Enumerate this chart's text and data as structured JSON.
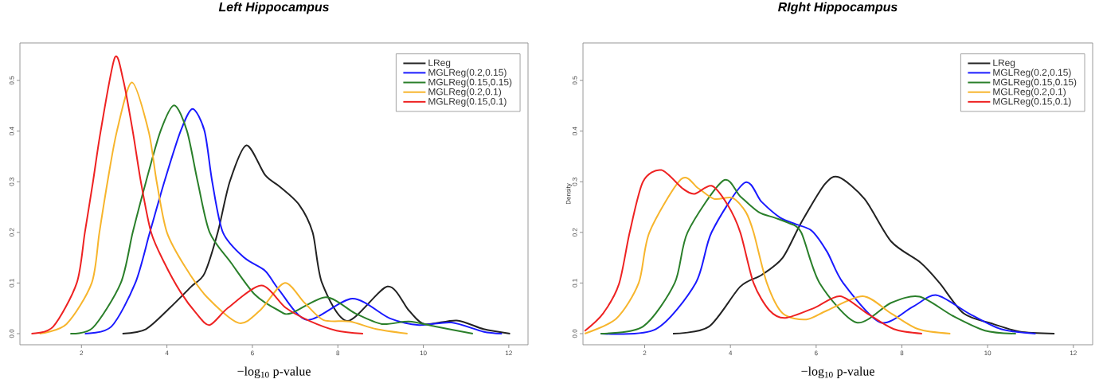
{
  "chart_data": [
    {
      "type": "line",
      "title": "Left Hippocampus",
      "xlabel": "−log$_{10}$ p-value",
      "xlim": [
        0.56,
        12.45
      ],
      "ylim": [
        -0.022,
        0.574
      ],
      "xticks": [
        2,
        4,
        6,
        8,
        10,
        12
      ],
      "yticks": [
        {
          "value": 0,
          "label": "0.0"
        },
        {
          "value": 0.1,
          "label": "0.1"
        },
        {
          "value": 0.2,
          "label": "0.2"
        },
        {
          "value": 0.3,
          "label": "0.3"
        },
        {
          "value": 0.4,
          "label": "0.4"
        },
        {
          "value": 0.5,
          "label": "0.5"
        }
      ],
      "legend": "top right",
      "series": [
        {
          "name": "LReg",
          "color": "#222222",
          "x": [
            2.96,
            3.51,
            4.07,
            4.57,
            4.88,
            5.19,
            5.47,
            5.86,
            6.3,
            6.63,
            7.09,
            7.41,
            7.63,
            8.22,
            9.16,
            9.66,
            10.03,
            10.78,
            11.41,
            12.03
          ],
          "values": [
            0,
            0.009,
            0.051,
            0.093,
            0.119,
            0.2,
            0.3,
            0.372,
            0.313,
            0.291,
            0.255,
            0.2,
            0.1,
            0.025,
            0.093,
            0.046,
            0.019,
            0.026,
            0.009,
            0
          ]
        },
        {
          "name": "MGLReg(0.2,0.15)",
          "color": "#1a1aff",
          "x": [
            2.08,
            2.7,
            3.26,
            3.6,
            3.94,
            4.32,
            4.6,
            4.88,
            5.06,
            5.31,
            5.81,
            6.3,
            6.61,
            7.28,
            8.34,
            9.22,
            9.9,
            10.66,
            11.4,
            11.84
          ],
          "values": [
            0,
            0.014,
            0.1,
            0.2,
            0.3,
            0.4,
            0.444,
            0.4,
            0.3,
            0.2,
            0.15,
            0.124,
            0.088,
            0.027,
            0.069,
            0.03,
            0.017,
            0.022,
            0.004,
            0
          ]
        },
        {
          "name": "MGLReg(0.15,0.15)",
          "color": "#2a7f2a",
          "x": [
            1.74,
            2.27,
            2.92,
            3.2,
            3.51,
            3.85,
            4.17,
            4.47,
            4.72,
            5.0,
            5.5,
            6.06,
            6.61,
            6.9,
            7.72,
            8.41,
            9.03,
            9.66,
            10.28,
            11.16
          ],
          "values": [
            0,
            0.012,
            0.1,
            0.2,
            0.3,
            0.4,
            0.451,
            0.4,
            0.3,
            0.2,
            0.14,
            0.077,
            0.046,
            0.04,
            0.072,
            0.04,
            0.019,
            0.024,
            0.014,
            0
          ]
        },
        {
          "name": "MGLReg(0.2,0.1)",
          "color": "#f7b52c",
          "x": [
            1.02,
            1.65,
            2.24,
            2.42,
            2.61,
            2.83,
            3.18,
            3.57,
            3.76,
            4.0,
            4.44,
            4.94,
            5.68,
            6.18,
            6.75,
            7.22,
            7.66,
            8.28,
            8.9,
            9.63
          ],
          "values": [
            0,
            0.019,
            0.1,
            0.2,
            0.3,
            0.4,
            0.496,
            0.4,
            0.3,
            0.2,
            0.13,
            0.072,
            0.021,
            0.046,
            0.1,
            0.061,
            0.027,
            0.024,
            0.009,
            0
          ]
        },
        {
          "name": "MGLReg(0.15,0.1)",
          "color": "#ee2222",
          "x": [
            0.83,
            1.34,
            1.89,
            2.08,
            2.27,
            2.45,
            2.78,
            2.98,
            3.2,
            3.39,
            3.63,
            3.94,
            4.32,
            4.69,
            5.0,
            5.43,
            6.21,
            6.78,
            7.34,
            7.97,
            8.59
          ],
          "values": [
            0,
            0.014,
            0.1,
            0.2,
            0.3,
            0.4,
            0.545,
            0.5,
            0.4,
            0.3,
            0.2,
            0.14,
            0.082,
            0.04,
            0.017,
            0.051,
            0.095,
            0.051,
            0.025,
            0.006,
            0
          ]
        }
      ]
    },
    {
      "type": "line",
      "title": "RIght Hippocampus",
      "xlabel": "−log$_{10}$ p-value",
      "ylabel": "Density",
      "xlim": [
        0.56,
        12.45
      ],
      "ylim": [
        -0.022,
        0.574
      ],
      "xticks": [
        2,
        4,
        6,
        8,
        10,
        12
      ],
      "yticks": [
        {
          "value": 0,
          "label": "0.0"
        },
        {
          "value": 0.1,
          "label": "0.1"
        },
        {
          "value": 0.2,
          "label": "0.2"
        },
        {
          "value": 0.3,
          "label": "0.3"
        },
        {
          "value": 0.4,
          "label": "0.4"
        },
        {
          "value": 0.5,
          "label": "0.5"
        }
      ],
      "legend": "top right",
      "series": [
        {
          "name": "LReg",
          "color": "#222222",
          "x": [
            2.66,
            3.5,
            4.23,
            4.73,
            5.22,
            5.65,
            6.2,
            6.53,
            7.13,
            7.75,
            8.44,
            8.88,
            9.44,
            10.13,
            10.75,
            11.56
          ],
          "values": [
            0,
            0.014,
            0.093,
            0.116,
            0.15,
            0.219,
            0.295,
            0.309,
            0.266,
            0.182,
            0.14,
            0.1,
            0.04,
            0.019,
            0.004,
            0
          ]
        },
        {
          "name": "MGLReg(0.2,0.15)",
          "color": "#1a1aff",
          "x": [
            0.97,
            2.26,
            3.19,
            3.56,
            4.33,
            4.73,
            5.16,
            5.53,
            5.9,
            6.26,
            6.63,
            7.5,
            8.25,
            8.81,
            9.56,
            10.31,
            11.12
          ],
          "values": [
            0,
            0.009,
            0.1,
            0.2,
            0.298,
            0.26,
            0.229,
            0.216,
            0.203,
            0.161,
            0.1,
            0.022,
            0.053,
            0.076,
            0.04,
            0.009,
            0
          ]
        },
        {
          "name": "MGLReg(0.15,0.15)",
          "color": "#2a7f2a",
          "x": [
            0.97,
            1.96,
            2.7,
            3.0,
            3.83,
            4.23,
            4.66,
            5.03,
            5.34,
            5.65,
            6.08,
            6.94,
            7.75,
            8.41,
            9.19,
            9.94,
            10.66
          ],
          "values": [
            0,
            0.014,
            0.1,
            0.2,
            0.302,
            0.271,
            0.24,
            0.229,
            0.219,
            0.2,
            0.1,
            0.022,
            0.061,
            0.073,
            0.035,
            0.006,
            0
          ]
        },
        {
          "name": "MGLReg(0.2,0.1)",
          "color": "#f7b52c",
          "x": [
            0.6,
            1.34,
            1.86,
            2.11,
            2.85,
            3.25,
            3.62,
            4.05,
            4.36,
            4.54,
            4.85,
            5.22,
            5.77,
            6.26,
            7.09,
            7.75,
            8.38,
            9.13
          ],
          "values": [
            0,
            0.03,
            0.1,
            0.2,
            0.305,
            0.287,
            0.266,
            0.268,
            0.24,
            0.2,
            0.1,
            0.04,
            0.028,
            0.046,
            0.074,
            0.04,
            0.009,
            0
          ]
        },
        {
          "name": "MGLReg(0.15,0.1)",
          "color": "#ee2222",
          "x": [
            0.6,
            1.03,
            1.4,
            1.65,
            1.96,
            2.39,
            2.88,
            3.16,
            3.56,
            3.93,
            4.23,
            4.54,
            4.91,
            5.28,
            5.96,
            6.56,
            7.19,
            7.81,
            8.47
          ],
          "values": [
            0.005,
            0.04,
            0.098,
            0.2,
            0.3,
            0.323,
            0.287,
            0.276,
            0.292,
            0.255,
            0.2,
            0.1,
            0.046,
            0.031,
            0.051,
            0.074,
            0.04,
            0.009,
            0
          ]
        }
      ]
    }
  ]
}
